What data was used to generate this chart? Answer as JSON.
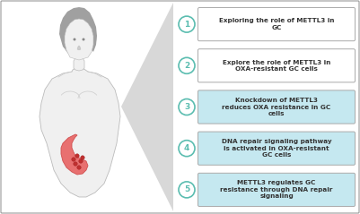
{
  "bg_color": "#ffffff",
  "items": [
    {
      "number": "1",
      "text": "Exploring the role of METTL3 in\nGC",
      "circle_edge": "#5bbdb0",
      "circle_fill": "#ffffff",
      "box_fill": "#ffffff",
      "box_edge": "#aaaaaa"
    },
    {
      "number": "2",
      "text": "Explore the role of METTL3 in\nOXA-resistant GC cells",
      "circle_edge": "#5bbdb0",
      "circle_fill": "#ffffff",
      "box_fill": "#ffffff",
      "box_edge": "#aaaaaa"
    },
    {
      "number": "3",
      "text": "Knockdown of METTL3\nreduces OXA resistance in GC\ncells",
      "circle_edge": "#5bbdb0",
      "circle_fill": "#ffffff",
      "box_fill": "#c5e8f0",
      "box_edge": "#aaaaaa"
    },
    {
      "number": "4",
      "text": "DNA repair signaling pathway\nis activated in OXA-resistant\nGC cells",
      "circle_edge": "#5bbdb0",
      "circle_fill": "#ffffff",
      "box_fill": "#c5e8f0",
      "box_edge": "#aaaaaa"
    },
    {
      "number": "5",
      "text": "METTL3 regulates GC\nresistance through DNA repair\nsignaling",
      "circle_edge": "#5bbdb0",
      "circle_fill": "#ffffff",
      "box_fill": "#c5e8f0",
      "box_edge": "#aaaaaa"
    }
  ],
  "outer_border_color": "#999999",
  "text_color": "#333333",
  "font_size": 5.2,
  "number_font_size": 6.5,
  "panel_bg": "#ffffff",
  "triangle_color": "#d8d8d8",
  "body_fill": "#f0f0f0",
  "body_edge": "#bbbbbb",
  "hair_color": "#a0a0a0",
  "stomach_fill": "#e87070",
  "stomach_edge": "#d05050",
  "stomach_dot": "#c03030"
}
